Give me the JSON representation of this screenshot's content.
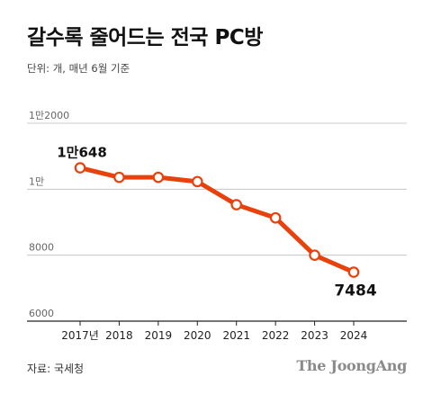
{
  "header": {
    "title": "갈수록 줄어드는 전국 PC방",
    "unit_note": "단위: 개, 매년 6월 기준"
  },
  "footer": {
    "source": "자료: 국세청",
    "brand": "The JoongAng"
  },
  "colors": {
    "line": "#e8410c",
    "marker_fill": "#ffffff",
    "grid": "#bdbdbd",
    "axis": "#222222"
  },
  "chart_data": {
    "type": "line",
    "categories": [
      "2017년",
      "2018",
      "2019",
      "2020",
      "2021",
      "2022",
      "2023",
      "2024"
    ],
    "series": [
      {
        "values": [
          10648,
          10360,
          10360,
          10230,
          9530,
          9130,
          8000,
          7484
        ]
      }
    ],
    "ylim": [
      6000,
      12000
    ],
    "yticks": [
      6000,
      8000,
      10000,
      12000
    ],
    "ytick_labels": [
      "6000",
      "8000",
      "1만",
      "1만2000"
    ],
    "grid": true,
    "data_labels": [
      {
        "index": 0,
        "text": "1만648"
      },
      {
        "index": 7,
        "text": "7484"
      }
    ]
  }
}
